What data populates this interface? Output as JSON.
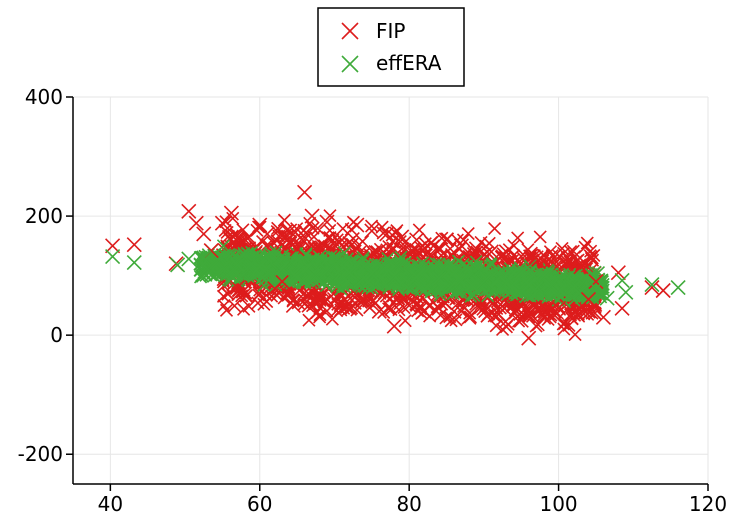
{
  "chart_data": {
    "type": "scatter",
    "title": "",
    "xlabel": "",
    "ylabel": "",
    "xlim": [
      35,
      120
    ],
    "ylim": [
      -250,
      400
    ],
    "x_ticks": [
      40,
      60,
      80,
      100,
      120
    ],
    "y_ticks": [
      400,
      200,
      0,
      -200
    ],
    "grid": true,
    "legend_position": "top-center",
    "marker": "x",
    "series": [
      {
        "name": "FIP",
        "color": "#dd1c1c",
        "points": [
          [
            40.3,
            150
          ],
          [
            43.2,
            152
          ],
          [
            48.8,
            120
          ],
          [
            50.5,
            208
          ],
          [
            51.5,
            188
          ],
          [
            52.5,
            170
          ],
          [
            53.5,
            142
          ],
          [
            55.0,
            188
          ],
          [
            56.2,
            205
          ],
          [
            57.0,
            80
          ],
          [
            57.8,
            74
          ],
          [
            58.5,
            165
          ],
          [
            60.0,
            185
          ],
          [
            61.0,
            170
          ],
          [
            62.0,
            78
          ],
          [
            63.0,
            90
          ],
          [
            64.0,
            175
          ],
          [
            64.5,
            50
          ],
          [
            65.0,
            145
          ],
          [
            66.0,
            240
          ],
          [
            66.5,
            70
          ],
          [
            67.0,
            200
          ],
          [
            68.0,
            65
          ],
          [
            69.0,
            190
          ],
          [
            70.0,
            60
          ],
          [
            71.0,
            160
          ],
          [
            72.0,
            45
          ],
          [
            73.0,
            185
          ],
          [
            74.0,
            60
          ],
          [
            75.0,
            175
          ],
          [
            76.0,
            40
          ],
          [
            77.0,
            170
          ],
          [
            78.0,
            15
          ],
          [
            79.0,
            165
          ],
          [
            80.0,
            50
          ],
          [
            81.0,
            160
          ],
          [
            82.0,
            40
          ],
          [
            83.0,
            155
          ],
          [
            84.0,
            45
          ],
          [
            85.0,
            160
          ],
          [
            86.0,
            40
          ],
          [
            87.0,
            150
          ],
          [
            88.0,
            30
          ],
          [
            89.0,
            145
          ],
          [
            90.0,
            45
          ],
          [
            91.0,
            140
          ],
          [
            92.0,
            35
          ],
          [
            93.0,
            140
          ],
          [
            94.0,
            50
          ],
          [
            95.0,
            25
          ],
          [
            96.0,
            -5
          ],
          [
            97.0,
            130
          ],
          [
            98.0,
            30
          ],
          [
            99.0,
            125
          ],
          [
            100.0,
            45
          ],
          [
            101.0,
            120
          ],
          [
            102.0,
            35
          ],
          [
            103.0,
            115
          ],
          [
            104.0,
            60
          ],
          [
            105.0,
            90
          ],
          [
            106.0,
            30
          ],
          [
            108.0,
            105
          ],
          [
            108.5,
            45
          ],
          [
            112.5,
            80
          ],
          [
            114.0,
            75
          ]
        ]
      },
      {
        "name": "effERA",
        "color": "#3faa3a",
        "points": [
          [
            40.3,
            132
          ],
          [
            43.2,
            122
          ],
          [
            49.0,
            118
          ],
          [
            50.5,
            128
          ],
          [
            52.5,
            130
          ],
          [
            54.5,
            122
          ],
          [
            57.0,
            118
          ],
          [
            60.0,
            115
          ],
          [
            63.0,
            112
          ],
          [
            66.0,
            110
          ],
          [
            69.0,
            108
          ],
          [
            72.0,
            105
          ],
          [
            75.0,
            103
          ],
          [
            78.0,
            100
          ],
          [
            81.0,
            98
          ],
          [
            84.0,
            95
          ],
          [
            87.0,
            92
          ],
          [
            90.0,
            90
          ],
          [
            93.0,
            88
          ],
          [
            96.0,
            85
          ],
          [
            99.0,
            83
          ],
          [
            102.0,
            80
          ],
          [
            105.0,
            78
          ],
          [
            106.5,
            62
          ],
          [
            108.5,
            92
          ],
          [
            109.0,
            72
          ],
          [
            112.5,
            85
          ],
          [
            116.0,
            80
          ]
        ]
      }
    ]
  }
}
